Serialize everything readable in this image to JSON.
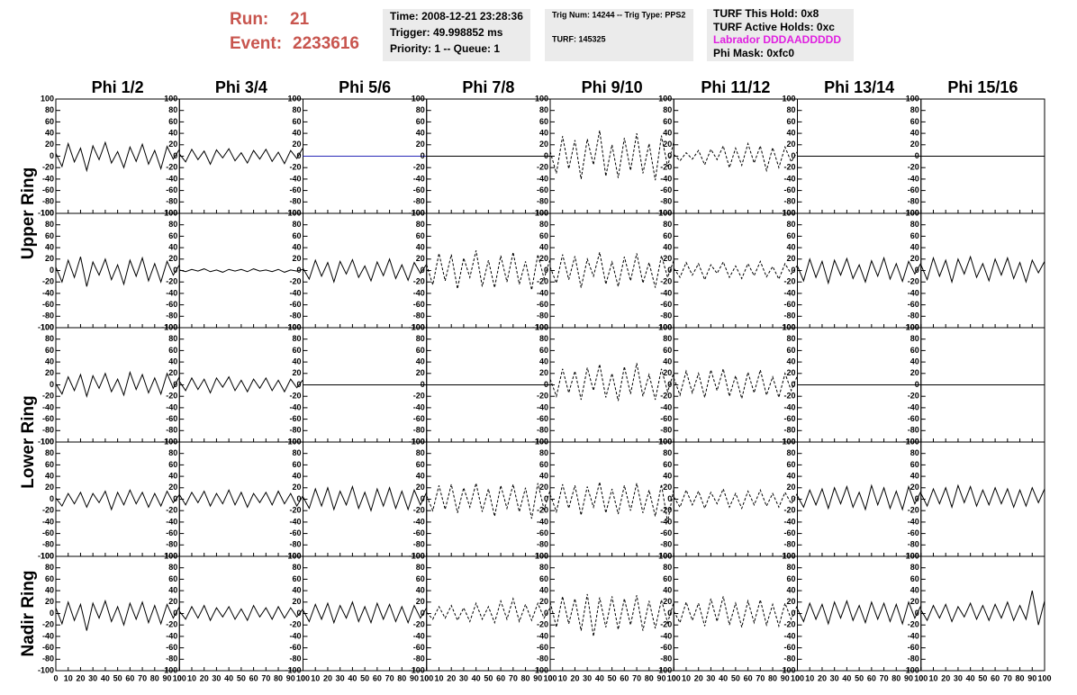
{
  "header": {
    "run_label": "Run:",
    "run": "21",
    "event_label": "Event:",
    "event": "2233616",
    "info1": [
      "Time: 2008-12-21 23:28:36",
      "Trigger: 49.998852 ms",
      "Priority: 1 -- Queue: 1"
    ],
    "info2": [
      "Trig Num: 14244 -- Trig Type: PPS2",
      "TURF: 145325"
    ],
    "info3": [
      "TURF This Hold: 0x8",
      "TURF Active Holds: 0xc",
      "Labrador DDDAADDDDD",
      "Phi Mask: 0xfc0"
    ]
  },
  "chart_data": {
    "type": "line",
    "columns": [
      "Phi 1/2",
      "Phi 3/4",
      "Phi 5/6",
      "Phi 7/8",
      "Phi 9/10",
      "Phi 11/12",
      "Phi 13/14",
      "Phi 15/16"
    ],
    "row_labels": [
      "Upper Ring",
      "Lower Ring",
      "Nadir Ring"
    ],
    "xlim": [
      0,
      100
    ],
    "ylim": [
      -100,
      100
    ],
    "xticks": [
      0,
      10,
      20,
      30,
      40,
      50,
      60,
      70,
      80,
      90,
      100
    ],
    "yticks": [
      -100,
      -80,
      -60,
      -40,
      -20,
      0,
      20,
      40,
      60,
      80,
      100
    ],
    "x": [
      0,
      5,
      10,
      15,
      20,
      25,
      30,
      35,
      40,
      45,
      50,
      55,
      60,
      65,
      70,
      75,
      80,
      85,
      90,
      95,
      100
    ],
    "panels": [
      [
        {
          "color": "#000000",
          "dash": false,
          "values": [
            5,
            -18,
            22,
            -10,
            14,
            -25,
            18,
            -6,
            24,
            -12,
            8,
            -20,
            16,
            -9,
            21,
            -14,
            10,
            -22,
            17,
            -5,
            12
          ]
        },
        {
          "color": "#000000",
          "dash": false,
          "values": [
            4,
            -10,
            12,
            -6,
            9,
            -14,
            11,
            -3,
            13,
            -8,
            6,
            -12,
            10,
            -5,
            12,
            -9,
            7,
            -13,
            10,
            -4,
            15
          ]
        },
        {
          "color": "#2a2ab8",
          "dash": false,
          "values": [
            0,
            0,
            0,
            0,
            0,
            0,
            0,
            0,
            0,
            0,
            0,
            0,
            0,
            0,
            0,
            0,
            0,
            0,
            0,
            0,
            0
          ]
        },
        {
          "color": "#000000",
          "dash": false,
          "values": [
            0,
            0,
            0,
            0,
            0,
            0,
            0,
            0,
            0,
            0,
            0,
            0,
            0,
            0,
            0,
            0,
            0,
            0,
            0,
            0,
            0
          ]
        },
        {
          "color": "#000000",
          "dash": true,
          "values": [
            8,
            -30,
            35,
            -22,
            28,
            -40,
            30,
            -15,
            45,
            -35,
            20,
            -38,
            32,
            -25,
            40,
            -30,
            22,
            -42,
            36,
            -18,
            25
          ]
        },
        {
          "color": "#000000",
          "dash": true,
          "values": [
            3,
            -8,
            6,
            -5,
            10,
            -15,
            12,
            -6,
            18,
            -20,
            14,
            -16,
            22,
            -12,
            18,
            -25,
            15,
            -20,
            16,
            -10,
            8
          ]
        },
        {
          "color": "#000000",
          "dash": false,
          "values": [
            0,
            0,
            0,
            0,
            0,
            0,
            0,
            0,
            0,
            0,
            0,
            0,
            0,
            0,
            0,
            0,
            0,
            0,
            0,
            0,
            0
          ]
        },
        {
          "color": "#000000",
          "dash": false,
          "values": [
            0,
            0,
            0,
            0,
            0,
            0,
            0,
            0,
            0,
            0,
            0,
            0,
            0,
            0,
            0,
            0,
            0,
            0,
            0,
            0,
            0
          ]
        }
      ],
      [
        {
          "color": "#000000",
          "dash": false,
          "values": [
            6,
            -20,
            18,
            -12,
            24,
            -28,
            15,
            -8,
            20,
            -16,
            10,
            -24,
            18,
            -10,
            22,
            -18,
            12,
            -20,
            16,
            -8,
            10
          ]
        },
        {
          "color": "#000000",
          "dash": false,
          "values": [
            1,
            -2,
            2,
            -1,
            3,
            -2,
            1,
            -3,
            2,
            -1,
            2,
            -2,
            3,
            -1,
            1,
            -2,
            2,
            -3,
            1,
            -1,
            2
          ]
        },
        {
          "color": "#000000",
          "dash": false,
          "values": [
            4,
            -15,
            18,
            -10,
            14,
            -20,
            16,
            -6,
            19,
            -12,
            8,
            -18,
            15,
            -9,
            20,
            -14,
            10,
            -17,
            14,
            -5,
            11
          ]
        },
        {
          "color": "#000000",
          "dash": true,
          "values": [
            10,
            -25,
            30,
            -18,
            28,
            -32,
            22,
            -12,
            35,
            -28,
            18,
            -30,
            26,
            -20,
            32,
            -24,
            16,
            -34,
            28,
            -14,
            20
          ]
        },
        {
          "color": "#000000",
          "dash": true,
          "values": [
            6,
            -22,
            28,
            -16,
            25,
            -30,
            20,
            -10,
            32,
            -24,
            15,
            -28,
            24,
            -18,
            30,
            -22,
            14,
            -30,
            26,
            -12,
            18
          ]
        },
        {
          "color": "#000000",
          "dash": true,
          "values": [
            4,
            -12,
            14,
            -8,
            12,
            -16,
            10,
            -5,
            15,
            -12,
            8,
            -14,
            12,
            -9,
            16,
            -11,
            7,
            -15,
            12,
            -6,
            9
          ]
        },
        {
          "color": "#000000",
          "dash": false,
          "values": [
            8,
            -18,
            20,
            -12,
            16,
            -22,
            18,
            -8,
            21,
            -14,
            10,
            -20,
            17,
            -10,
            22,
            -15,
            12,
            -19,
            16,
            -6,
            13
          ]
        },
        {
          "color": "#000000",
          "dash": false,
          "values": [
            10,
            -16,
            22,
            -10,
            18,
            -20,
            20,
            -6,
            24,
            -12,
            12,
            -18,
            20,
            -8,
            22,
            -14,
            14,
            -20,
            18,
            -4,
            16
          ]
        }
      ],
      [
        {
          "color": "#000000",
          "dash": false,
          "values": [
            2,
            -16,
            14,
            -10,
            18,
            -20,
            16,
            -6,
            20,
            -12,
            10,
            -18,
            22,
            -8,
            18,
            -14,
            12,
            -16,
            20,
            -6,
            14
          ]
        },
        {
          "color": "#000000",
          "dash": false,
          "values": [
            6,
            -10,
            12,
            -8,
            10,
            -14,
            12,
            -4,
            14,
            -10,
            8,
            -12,
            10,
            -6,
            12,
            -10,
            8,
            -12,
            10,
            -5,
            9
          ]
        },
        {
          "color": "#000000",
          "dash": false,
          "values": [
            0,
            0,
            0,
            0,
            0,
            0,
            0,
            0,
            0,
            0,
            0,
            0,
            0,
            0,
            0,
            0,
            0,
            0,
            0,
            0,
            0
          ]
        },
        {
          "color": "#000000",
          "dash": false,
          "values": [
            0,
            0,
            0,
            0,
            0,
            0,
            0,
            0,
            0,
            0,
            0,
            0,
            0,
            0,
            0,
            0,
            0,
            0,
            0,
            0,
            0
          ]
        },
        {
          "color": "#000000",
          "dash": true,
          "values": [
            10,
            -20,
            28,
            -14,
            24,
            -26,
            30,
            -10,
            36,
            -22,
            20,
            -28,
            32,
            -16,
            38,
            -20,
            18,
            -26,
            28,
            -12,
            22
          ]
        },
        {
          "color": "#000000",
          "dash": true,
          "values": [
            12,
            -18,
            24,
            -14,
            20,
            -22,
            26,
            -10,
            28,
            -20,
            16,
            -24,
            22,
            -14,
            26,
            -18,
            14,
            -22,
            20,
            -10,
            16
          ]
        },
        {
          "color": "#000000",
          "dash": false,
          "values": [
            0,
            0,
            0,
            0,
            0,
            0,
            0,
            0,
            0,
            0,
            0,
            0,
            0,
            0,
            0,
            0,
            0,
            0,
            0,
            0,
            0
          ]
        },
        {
          "color": "#000000",
          "dash": false,
          "values": [
            0,
            0,
            0,
            0,
            0,
            0,
            0,
            0,
            0,
            0,
            0,
            0,
            0,
            0,
            0,
            0,
            0,
            0,
            0,
            0,
            0
          ]
        }
      ],
      [
        {
          "color": "#000000",
          "dash": false,
          "values": [
            2,
            -12,
            10,
            -8,
            12,
            -14,
            10,
            -6,
            14,
            -18,
            12,
            -10,
            16,
            -8,
            12,
            -14,
            10,
            -12,
            14,
            -6,
            8
          ]
        },
        {
          "color": "#000000",
          "dash": false,
          "values": [
            8,
            -10,
            12,
            -6,
            14,
            -12,
            10,
            -8,
            16,
            -10,
            12,
            -14,
            10,
            -6,
            12,
            -10,
            14,
            -8,
            10,
            -12,
            6
          ]
        },
        {
          "color": "#000000",
          "dash": false,
          "values": [
            4,
            -16,
            18,
            -12,
            20,
            -18,
            14,
            -10,
            22,
            -16,
            12,
            -20,
            18,
            -12,
            20,
            -16,
            14,
            -18,
            16,
            -10,
            12
          ]
        },
        {
          "color": "#000000",
          "dash": true,
          "values": [
            6,
            -20,
            24,
            -18,
            26,
            -24,
            20,
            -14,
            28,
            -22,
            18,
            -30,
            24,
            -16,
            26,
            -22,
            20,
            -34,
            28,
            -18,
            16
          ]
        },
        {
          "color": "#000000",
          "dash": true,
          "values": [
            8,
            -22,
            26,
            -16,
            24,
            -28,
            22,
            -14,
            30,
            -24,
            18,
            -26,
            24,
            -20,
            28,
            -24,
            16,
            -30,
            26,
            -40,
            18
          ]
        },
        {
          "color": "#000000",
          "dash": true,
          "values": [
            4,
            -14,
            16,
            -10,
            14,
            -16,
            12,
            -8,
            18,
            -14,
            10,
            -16,
            14,
            -10,
            16,
            -12,
            10,
            -14,
            12,
            -8,
            10
          ]
        },
        {
          "color": "#000000",
          "dash": false,
          "values": [
            6,
            -14,
            16,
            -10,
            18,
            -16,
            20,
            -8,
            22,
            -14,
            12,
            -18,
            24,
            -10,
            20,
            -16,
            14,
            -18,
            22,
            -8,
            14
          ]
        },
        {
          "color": "#000000",
          "dash": false,
          "values": [
            10,
            -12,
            18,
            -8,
            20,
            -14,
            24,
            -6,
            22,
            -12,
            16,
            -10,
            20,
            -8,
            18,
            -14,
            16,
            -12,
            20,
            -6,
            18
          ]
        }
      ],
      [
        {
          "color": "#000000",
          "dash": false,
          "values": [
            10,
            -18,
            20,
            -12,
            16,
            -30,
            18,
            -8,
            22,
            -14,
            12,
            -20,
            18,
            -10,
            20,
            -16,
            14,
            -18,
            16,
            -8,
            12
          ]
        },
        {
          "color": "#000000",
          "dash": false,
          "values": [
            4,
            -10,
            12,
            -8,
            14,
            -12,
            10,
            -6,
            12,
            -10,
            8,
            -12,
            14,
            -6,
            10,
            -10,
            12,
            -8,
            10,
            -6,
            8
          ]
        },
        {
          "color": "#000000",
          "dash": false,
          "values": [
            6,
            -14,
            16,
            -10,
            18,
            -16,
            14,
            -8,
            20,
            -14,
            12,
            -16,
            18,
            -10,
            16,
            -14,
            12,
            -16,
            14,
            -8,
            10
          ]
        },
        {
          "color": "#000000",
          "dash": true,
          "values": [
            2,
            -10,
            12,
            -8,
            14,
            -12,
            10,
            -14,
            18,
            -10,
            12,
            -16,
            22,
            -10,
            26,
            -14,
            16,
            -12,
            18,
            -8,
            10
          ]
        },
        {
          "color": "#000000",
          "dash": true,
          "values": [
            20,
            -24,
            30,
            -18,
            26,
            -30,
            34,
            -40,
            28,
            -24,
            30,
            -28,
            26,
            -20,
            32,
            -30,
            22,
            -26,
            24,
            -16,
            20
          ]
        },
        {
          "color": "#000000",
          "dash": true,
          "values": [
            4,
            -16,
            20,
            -12,
            18,
            -22,
            26,
            -14,
            30,
            -20,
            18,
            -24,
            22,
            -16,
            24,
            -20,
            16,
            -22,
            18,
            -10,
            14
          ]
        },
        {
          "color": "#000000",
          "dash": false,
          "values": [
            8,
            -14,
            18,
            -10,
            16,
            -18,
            20,
            -8,
            22,
            -12,
            14,
            -16,
            20,
            -10,
            18,
            -14,
            16,
            -18,
            20,
            -8,
            14
          ]
        },
        {
          "color": "#000000",
          "dash": false,
          "values": [
            6,
            -12,
            14,
            -8,
            16,
            -14,
            12,
            -6,
            18,
            -10,
            14,
            -12,
            16,
            -8,
            20,
            -12,
            14,
            -10,
            40,
            -20,
            22
          ]
        }
      ]
    ]
  }
}
